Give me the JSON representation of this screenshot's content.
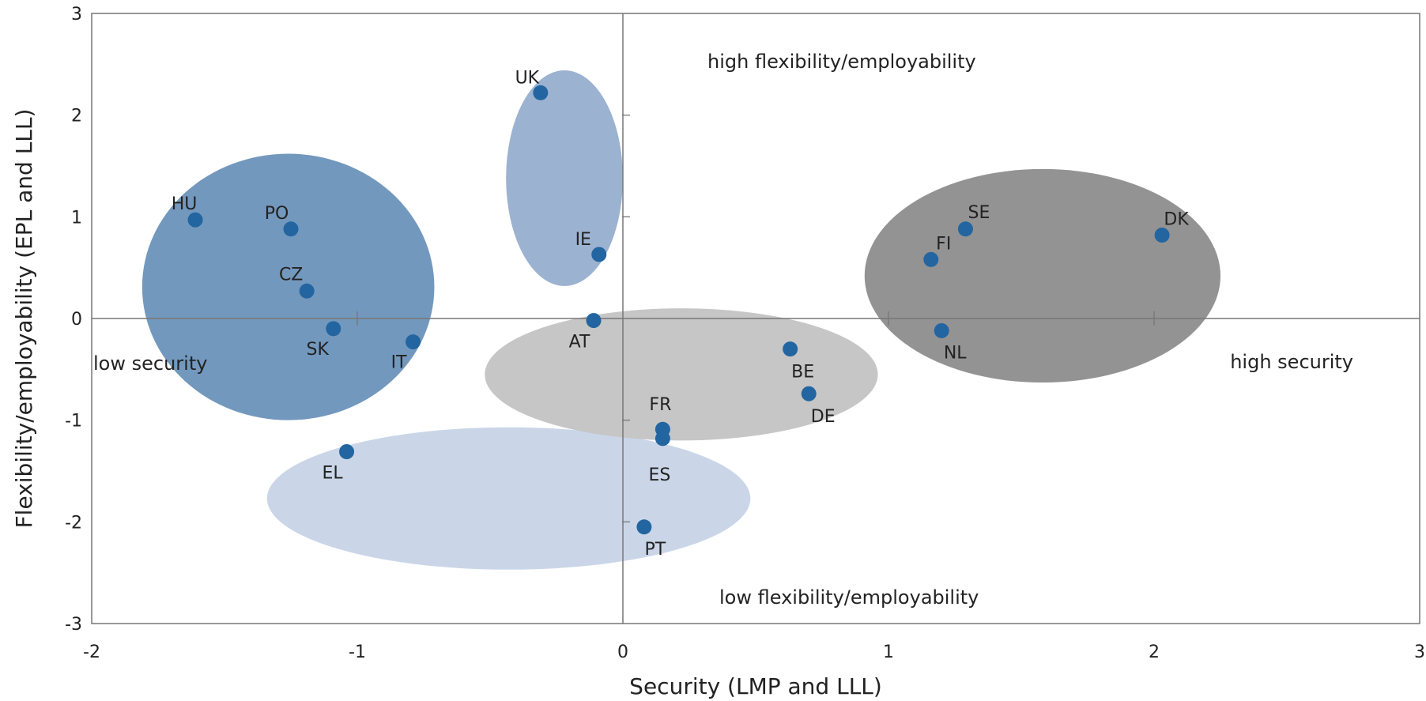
{
  "chart_data": {
    "type": "scatter",
    "title": "",
    "xlabel": "Security (LMP and LLL)",
    "ylabel": "Flexibility/employability (EPL and LLL)",
    "xlim": [
      -2,
      3
    ],
    "ylim": [
      -3,
      3
    ],
    "xticks": [
      -2,
      -1,
      0,
      1,
      2,
      3
    ],
    "yticks": [
      -3,
      -2,
      -1,
      0,
      1,
      2,
      3
    ],
    "grid": false,
    "marker_color": "#2365a0",
    "points": [
      {
        "label": "HU",
        "x": -1.61,
        "y": 0.97
      },
      {
        "label": "PO",
        "x": -1.25,
        "y": 0.88
      },
      {
        "label": "CZ",
        "x": -1.19,
        "y": 0.27
      },
      {
        "label": "SK",
        "x": -1.09,
        "y": -0.1
      },
      {
        "label": "IT",
        "x": -0.79,
        "y": -0.23
      },
      {
        "label": "UK",
        "x": -0.31,
        "y": 2.22
      },
      {
        "label": "IE",
        "x": -0.09,
        "y": 0.63
      },
      {
        "label": "AT",
        "x": -0.11,
        "y": -0.02
      },
      {
        "label": "EL",
        "x": -1.04,
        "y": -1.31
      },
      {
        "label": "FR",
        "x": 0.15,
        "y": -1.09
      },
      {
        "label": "ES",
        "x": 0.15,
        "y": -1.18
      },
      {
        "label": "PT",
        "x": 0.08,
        "y": -2.05
      },
      {
        "label": "BE",
        "x": 0.63,
        "y": -0.3
      },
      {
        "label": "DE",
        "x": 0.7,
        "y": -0.74
      },
      {
        "label": "SE",
        "x": 1.29,
        "y": 0.88
      },
      {
        "label": "FI",
        "x": 1.16,
        "y": 0.58
      },
      {
        "label": "NL",
        "x": 1.2,
        "y": -0.12
      },
      {
        "label": "DK",
        "x": 2.03,
        "y": 0.82
      }
    ],
    "clusters": [
      {
        "color": "#7398bd",
        "cx": -1.26,
        "cy": 0.31,
        "rx": 0.55,
        "ry": 1.31
      },
      {
        "color": "#9cb2d1",
        "cx": -0.22,
        "cy": 1.38,
        "rx": 0.22,
        "ry": 1.06
      },
      {
        "color": "#cad6e8",
        "cx": -0.43,
        "cy": -1.77,
        "rx": 0.91,
        "ry": 0.7
      },
      {
        "color": "#c6c6c6",
        "cx": 0.22,
        "cy": -0.55,
        "rx": 0.74,
        "ry": 0.65
      },
      {
        "color": "#939393",
        "cx": 1.58,
        "cy": 0.42,
        "rx": 0.67,
        "ry": 1.05
      }
    ],
    "annotations": [
      "high flexibility/employability",
      "low flexibility/employability",
      "low security",
      "high security"
    ]
  }
}
